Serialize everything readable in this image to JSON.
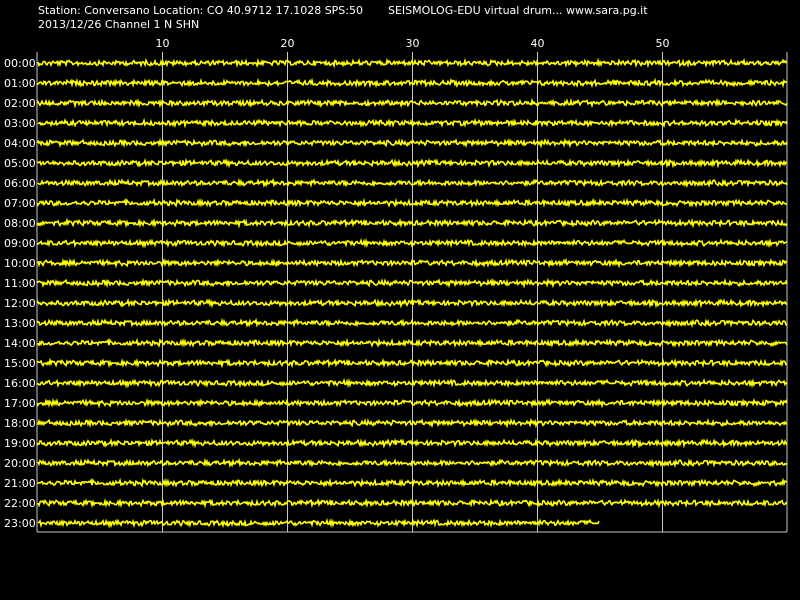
{
  "header": {
    "station_line": "Station: Conversano Location: CO 40.9712 17.1028 SPS:50",
    "program_line": "SEISMOLOG-EDU virtual drum... www.sara.pg.it",
    "date_line": "2013/12/26  Channel 1 N SHN"
  },
  "chart_data": {
    "type": "line",
    "xlim": [
      0,
      60
    ],
    "x_ticks": [
      10,
      20,
      30,
      40,
      50
    ],
    "x_tick_labels": [
      "10",
      "20",
      "30",
      "40",
      "50"
    ],
    "row_labels": [
      "00:00",
      "01:00",
      "02:00",
      "03:00",
      "04:00",
      "05:00",
      "06:00",
      "07:00",
      "08:00",
      "09:00",
      "10:00",
      "11:00",
      "12:00",
      "13:00",
      "14:00",
      "15:00",
      "16:00",
      "17:00",
      "18:00",
      "19:00",
      "20:00",
      "21:00",
      "22:00",
      "23:00"
    ],
    "last_row_end_minute": 45,
    "grid": true,
    "colors": {
      "background": "#000000",
      "trace": "#ffff00",
      "grid": "#c8c8c8",
      "text": "#ffffff"
    }
  }
}
